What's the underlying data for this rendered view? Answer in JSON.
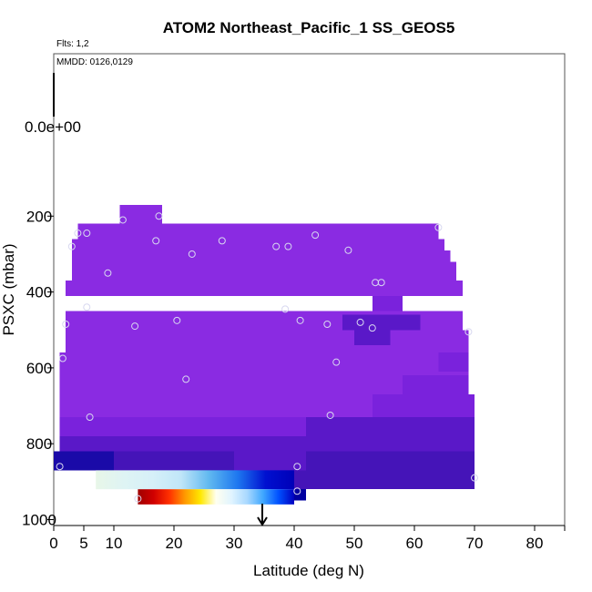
{
  "chart_data": {
    "type": "heatmap",
    "title": "ATOM2 Northeast_Pacific_1 SS_GEOS5",
    "annotations": {
      "flights": "Flts: 1,2",
      "dates": "MMDD: 0126,0129"
    },
    "xlabel": "Latitude (deg N)",
    "ylabel": "PSXC (mbar)",
    "xlim": [
      0,
      85
    ],
    "ylim": [
      1000,
      -200
    ],
    "x_ticks": [
      0,
      5,
      10,
      20,
      30,
      40,
      50,
      60,
      70,
      80
    ],
    "y_ticks": [
      200,
      400,
      600,
      800,
      1000
    ],
    "y_tick_extra": "0.0e+00",
    "arrow_x": 35,
    "colors": {
      "violet": "#8a2be2",
      "violet_dark": "#7a22dc",
      "indigo": "#5a18c8",
      "indigo_dark": "#4514b8",
      "navy": "#1a0aa8",
      "blue": "#0000c8",
      "deep_blue": "#0000a0"
    },
    "cells": [
      {
        "x0": 11,
        "x1": 18,
        "p0": 170,
        "p1": 220,
        "c": "violet"
      },
      {
        "x0": 4,
        "x1": 64,
        "p0": 220,
        "p1": 260,
        "c": "violet"
      },
      {
        "x0": 3,
        "x1": 65,
        "p0": 260,
        "p1": 290,
        "c": "violet"
      },
      {
        "x0": 3,
        "x1": 66,
        "p0": 290,
        "p1": 320,
        "c": "violet"
      },
      {
        "x0": 3,
        "x1": 67,
        "p0": 320,
        "p1": 370,
        "c": "violet"
      },
      {
        "x0": 2,
        "x1": 68,
        "p0": 370,
        "p1": 410,
        "c": "violet"
      },
      {
        "x0": 53,
        "x1": 58,
        "p0": 410,
        "p1": 450,
        "c": "violet_dark"
      },
      {
        "x0": 2,
        "x1": 68,
        "p0": 450,
        "p1": 500,
        "c": "violet"
      },
      {
        "x0": 48,
        "x1": 61,
        "p0": 460,
        "p1": 500,
        "c": "indigo"
      },
      {
        "x0": 2,
        "x1": 69,
        "p0": 500,
        "p1": 560,
        "c": "violet"
      },
      {
        "x0": 50,
        "x1": 56,
        "p0": 500,
        "p1": 540,
        "c": "indigo"
      },
      {
        "x0": 1,
        "x1": 69,
        "p0": 560,
        "p1": 620,
        "c": "violet"
      },
      {
        "x0": 64,
        "x1": 69,
        "p0": 560,
        "p1": 610,
        "c": "violet_dark"
      },
      {
        "x0": 1,
        "x1": 69,
        "p0": 620,
        "p1": 670,
        "c": "violet"
      },
      {
        "x0": 58,
        "x1": 69,
        "p0": 620,
        "p1": 670,
        "c": "violet_dark"
      },
      {
        "x0": 1,
        "x1": 70,
        "p0": 670,
        "p1": 730,
        "c": "violet"
      },
      {
        "x0": 53,
        "x1": 70,
        "p0": 670,
        "p1": 730,
        "c": "violet_dark"
      },
      {
        "x0": 1,
        "x1": 70,
        "p0": 730,
        "p1": 780,
        "c": "violet_dark"
      },
      {
        "x0": 10,
        "x1": 70,
        "p0": 730,
        "p1": 780,
        "c": "violet_dark"
      },
      {
        "x0": 42,
        "x1": 70,
        "p0": 730,
        "p1": 780,
        "c": "indigo"
      },
      {
        "x0": 1,
        "x1": 70,
        "p0": 780,
        "p1": 820,
        "c": "indigo"
      },
      {
        "x0": 0,
        "x1": 70,
        "p0": 820,
        "p1": 870,
        "c": "indigo_dark"
      },
      {
        "x0": 0,
        "x1": 10,
        "p0": 820,
        "p1": 870,
        "c": "navy"
      },
      {
        "x0": 30,
        "x1": 42,
        "p0": 820,
        "p1": 870,
        "c": "indigo"
      },
      {
        "x0": 40,
        "x1": 70,
        "p0": 870,
        "p1": 920,
        "c": "indigo_dark"
      },
      {
        "x0": 40,
        "x1": 42,
        "p0": 920,
        "p1": 950,
        "c": "deep_blue"
      }
    ],
    "grad_top": {
      "x0": 7,
      "x1": 40,
      "p0": 870,
      "p1": 920,
      "stops": [
        "#e8f6e8",
        "#def4f4",
        "#d6f0f8",
        "#c0e6f8",
        "#60b8f0",
        "#1e78f0",
        "#0010d0",
        "#0000b8"
      ]
    },
    "grad_bottom": {
      "x0": 14,
      "x1": 40,
      "p0": 920,
      "p1": 960,
      "stops": [
        "#a00000",
        "#d00000",
        "#ff3000",
        "#ff9800",
        "#ffe800",
        "#fffff0",
        "#e0f4ff",
        "#a8d8ff",
        "#40a8ff",
        "#0050ff",
        "#0000c0"
      ]
    },
    "points": [
      {
        "x": 11.5,
        "p": 210
      },
      {
        "x": 17.5,
        "p": 200
      },
      {
        "x": 4,
        "p": 245
      },
      {
        "x": 5.5,
        "p": 245
      },
      {
        "x": 3,
        "p": 280
      },
      {
        "x": 17,
        "p": 265
      },
      {
        "x": 28,
        "p": 265
      },
      {
        "x": 23,
        "p": 300
      },
      {
        "x": 37,
        "p": 280
      },
      {
        "x": 39,
        "p": 280
      },
      {
        "x": 43.5,
        "p": 250
      },
      {
        "x": 49,
        "p": 290
      },
      {
        "x": 64,
        "p": 230
      },
      {
        "x": 9,
        "p": 350
      },
      {
        "x": 5.5,
        "p": 440
      },
      {
        "x": 53.5,
        "p": 375
      },
      {
        "x": 54.5,
        "p": 375
      },
      {
        "x": 38.5,
        "p": 445
      },
      {
        "x": 2,
        "p": 485
      },
      {
        "x": 13.5,
        "p": 490
      },
      {
        "x": 20.5,
        "p": 475
      },
      {
        "x": 41,
        "p": 475
      },
      {
        "x": 45.5,
        "p": 485
      },
      {
        "x": 51,
        "p": 480
      },
      {
        "x": 53,
        "p": 495
      },
      {
        "x": 69,
        "p": 505
      },
      {
        "x": 1.5,
        "p": 575
      },
      {
        "x": 47,
        "p": 585
      },
      {
        "x": 22,
        "p": 630
      },
      {
        "x": 6,
        "p": 730
      },
      {
        "x": 46,
        "p": 725
      },
      {
        "x": 1,
        "p": 860
      },
      {
        "x": 40.5,
        "p": 860
      },
      {
        "x": 70,
        "p": 890
      },
      {
        "x": 40.5,
        "p": 925
      },
      {
        "x": 14,
        "p": 945
      }
    ]
  }
}
